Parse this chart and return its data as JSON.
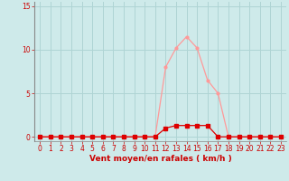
{
  "title": "",
  "xlabel": "Vent moyen/en rafales ( km/h )",
  "ylabel": "",
  "background_color": "#ceeaea",
  "grid_color": "#afd4d4",
  "line_color": "#ff9999",
  "marker_color": "#dd0000",
  "xlim": [
    -0.5,
    23.5
  ],
  "ylim": [
    -0.5,
    15.5
  ],
  "xticks": [
    0,
    1,
    2,
    3,
    4,
    5,
    6,
    7,
    8,
    9,
    10,
    11,
    12,
    13,
    14,
    15,
    16,
    17,
    18,
    19,
    20,
    21,
    22,
    23
  ],
  "yticks": [
    0,
    5,
    10,
    15
  ],
  "x_values": [
    0,
    1,
    2,
    3,
    4,
    5,
    6,
    7,
    8,
    9,
    10,
    11,
    12,
    13,
    14,
    15,
    16,
    17,
    18,
    19,
    20,
    21,
    22,
    23
  ],
  "y_values": [
    0,
    0,
    0,
    0,
    0,
    0,
    0,
    0,
    0,
    0,
    0,
    0,
    8,
    10.2,
    11.5,
    10.2,
    6.5,
    5,
    0,
    0,
    0,
    0,
    0,
    0
  ],
  "y2_values": [
    0,
    0,
    0,
    0,
    0,
    0,
    0,
    0,
    0,
    0,
    0,
    0,
    1,
    1.3,
    1.3,
    1.3,
    1.3,
    0,
    0,
    0,
    0,
    0,
    0,
    0
  ],
  "label_fontsize": 6.5,
  "tick_fontsize": 5.5,
  "xlabel_color": "#cc0000",
  "tick_color": "#cc0000",
  "spine_color": "#888888"
}
